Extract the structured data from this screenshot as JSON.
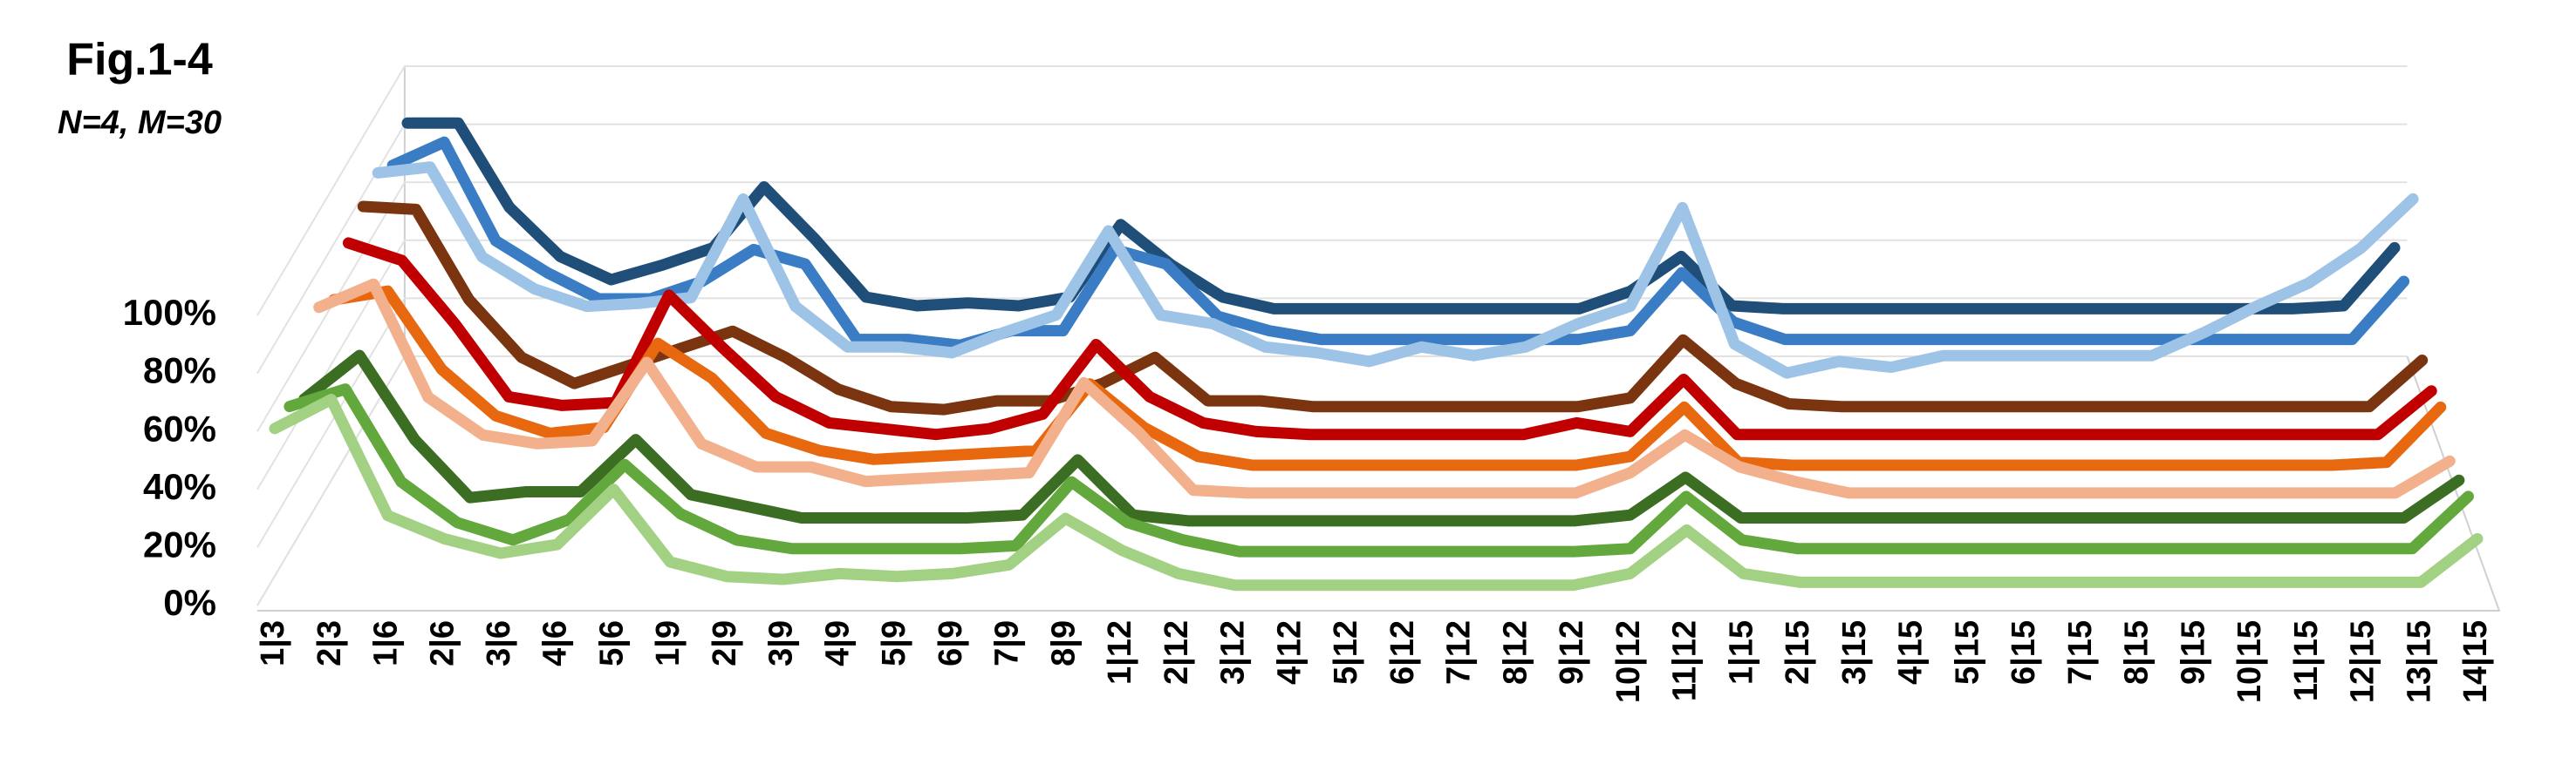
{
  "chart_data": {
    "type": "line3d",
    "title": "Fig.1-4",
    "subtitle": "N=4, M=30",
    "categories": [
      "1|3",
      "2|3",
      "1|6",
      "2|6",
      "3|6",
      "4|6",
      "5|6",
      "1|9",
      "2|9",
      "3|9",
      "4|9",
      "5|9",
      "6|9",
      "7|9",
      "8|9",
      "1|12",
      "2|12",
      "3|12",
      "4|12",
      "5|12",
      "6|12",
      "7|12",
      "8|12",
      "9|12",
      "10|12",
      "11|12",
      "1|15",
      "2|15",
      "3|15",
      "4|15",
      "5|15",
      "6|15",
      "7|15",
      "8|15",
      "9|15",
      "10|15",
      "11|15",
      "12|15",
      "13|15",
      "14|15"
    ],
    "series": [
      {
        "color": "#a2d183",
        "values": [
          61,
          71,
          31,
          23,
          18,
          21,
          40,
          15,
          10,
          9,
          11,
          10,
          11,
          14,
          30,
          19,
          11,
          7,
          7,
          7,
          7,
          7,
          7,
          7,
          11,
          26,
          11,
          8,
          8,
          8,
          8,
          8,
          8,
          8,
          8,
          8,
          8,
          8,
          8,
          23
        ]
      },
      {
        "color": "#62a83c",
        "values": [
          60,
          66,
          34,
          20,
          14,
          21,
          40,
          23,
          14,
          11,
          11,
          11,
          11,
          12,
          34,
          20,
          14,
          10,
          10,
          10,
          10,
          10,
          10,
          10,
          11,
          29,
          14,
          11,
          11,
          11,
          11,
          11,
          11,
          11,
          11,
          11,
          11,
          11,
          11,
          29
        ]
      },
      {
        "color": "#3b6e22",
        "values": [
          54,
          69,
          40,
          20,
          22,
          22,
          40,
          21,
          17,
          13,
          13,
          13,
          13,
          14,
          33,
          14,
          12,
          12,
          12,
          12,
          12,
          12,
          12,
          12,
          14,
          27,
          13,
          13,
          13,
          13,
          13,
          13,
          13,
          13,
          13,
          13,
          13,
          13,
          13,
          26
        ]
      },
      {
        "color": "#f2b08c",
        "values": [
          77,
          85,
          46,
          33,
          30,
          31,
          58,
          30,
          22,
          22,
          17,
          18,
          19,
          20,
          51,
          34,
          14,
          13,
          13,
          13,
          13,
          13,
          13,
          13,
          20,
          33,
          22,
          17,
          13,
          13,
          13,
          13,
          13,
          13,
          13,
          13,
          13,
          13,
          13,
          24
        ]
      },
      {
        "color": "#e8680f",
        "values": [
          71,
          74,
          47,
          31,
          25,
          27,
          56,
          44,
          25,
          19,
          16,
          17,
          18,
          19,
          42,
          27,
          17,
          14,
          14,
          14,
          14,
          14,
          14,
          14,
          17,
          34,
          15,
          14,
          14,
          14,
          14,
          14,
          14,
          14,
          14,
          14,
          14,
          14,
          15,
          34
        ]
      },
      {
        "color": "#c00000",
        "values": [
          82,
          76,
          54,
          29,
          26,
          27,
          64,
          46,
          29,
          20,
          18,
          16,
          18,
          23,
          47,
          29,
          20,
          17,
          16,
          16,
          16,
          16,
          16,
          20,
          17,
          35,
          16,
          16,
          16,
          16,
          16,
          16,
          16,
          16,
          16,
          16,
          16,
          16,
          16,
          31
        ]
      },
      {
        "color": "#7a3410",
        "values": [
          86,
          85,
          54,
          34,
          25,
          31,
          37,
          43,
          34,
          23,
          17,
          16,
          19,
          19,
          25,
          34,
          19,
          19,
          17,
          17,
          17,
          17,
          17,
          17,
          20,
          40,
          25,
          18,
          17,
          17,
          17,
          17,
          17,
          17,
          17,
          17,
          17,
          17,
          17,
          33
        ]
      },
      {
        "color": "#9dc3e6",
        "values": [
          89,
          91,
          60,
          49,
          43,
          44,
          46,
          80,
          43,
          29,
          29,
          27,
          34,
          40,
          69,
          40,
          37,
          29,
          27,
          24,
          29,
          26,
          29,
          37,
          43,
          77,
          30,
          20,
          24,
          22,
          26,
          26,
          26,
          26,
          26,
          34,
          43,
          51,
          63,
          80
        ]
      },
      {
        "color": "#3a7dc4",
        "values": [
          83,
          91,
          57,
          46,
          37,
          37,
          43,
          54,
          49,
          23,
          23,
          21,
          26,
          26,
          54,
          49,
          31,
          26,
          23,
          23,
          23,
          23,
          23,
          23,
          26,
          46,
          29,
          23,
          23,
          23,
          23,
          23,
          23,
          23,
          23,
          23,
          23,
          23,
          23,
          43
        ]
      },
      {
        "color": "#1f4e79",
        "values": [
          89,
          89,
          60,
          43,
          35,
          40,
          46,
          67,
          49,
          29,
          26,
          27,
          26,
          29,
          54,
          40,
          29,
          25,
          25,
          25,
          25,
          25,
          25,
          25,
          31,
          43,
          26,
          25,
          25,
          25,
          25,
          25,
          25,
          25,
          25,
          25,
          25,
          25,
          26,
          46
        ]
      }
    ],
    "ylim": [
      0,
      100
    ],
    "yticks": [
      {
        "value": 0,
        "label": "0%"
      },
      {
        "value": 20,
        "label": "20%"
      },
      {
        "value": 40,
        "label": "40%"
      },
      {
        "value": 60,
        "label": "60%"
      },
      {
        "value": 80,
        "label": "80%"
      },
      {
        "value": 100,
        "label": "100%"
      }
    ],
    "grid": true
  }
}
